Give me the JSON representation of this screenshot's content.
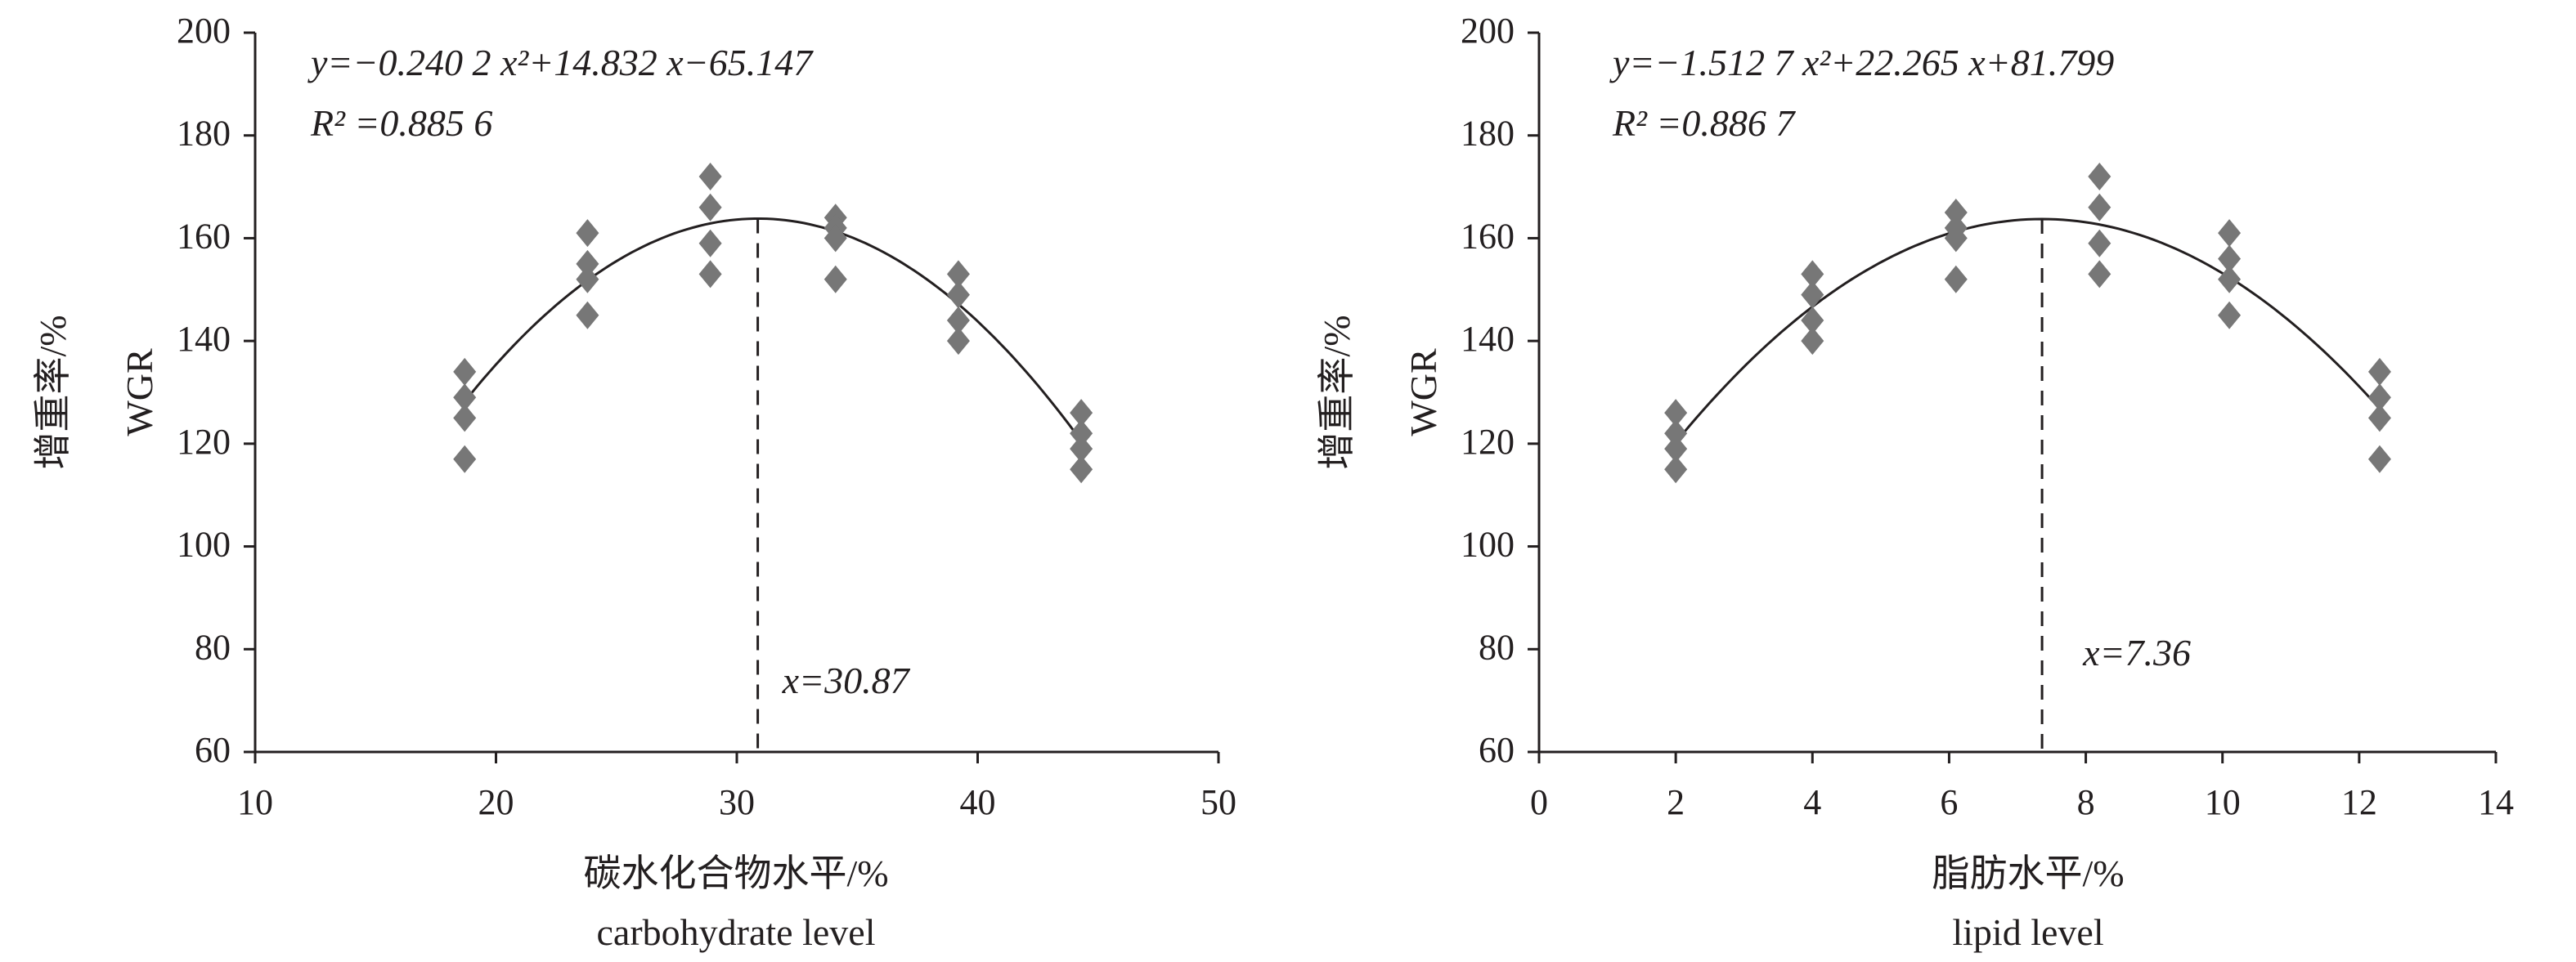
{
  "chart_data": [
    {
      "type": "scatter",
      "title": "",
      "xlabel": "碳水化合物水平/%",
      "xlabel_en": "carbohydrate level",
      "ylabel": "增重率/%",
      "ylabel_en": "WGR",
      "xlim": [
        10,
        50
      ],
      "ylim": [
        60,
        200
      ],
      "xticks": [
        10,
        20,
        30,
        40,
        50
      ],
      "yticks": [
        60,
        80,
        100,
        120,
        140,
        160,
        180,
        200
      ],
      "grid": false,
      "marker_color": "#777777",
      "points": [
        {
          "x": 18.7,
          "y": [
            134,
            129,
            125,
            117
          ]
        },
        {
          "x": 23.8,
          "y": [
            161,
            155,
            152,
            145
          ]
        },
        {
          "x": 28.9,
          "y": [
            172,
            166,
            159,
            153
          ]
        },
        {
          "x": 34.1,
          "y": [
            164,
            162,
            160,
            152
          ]
        },
        {
          "x": 39.2,
          "y": [
            153,
            149,
            144,
            140
          ]
        },
        {
          "x": 44.3,
          "y": [
            126,
            122,
            119,
            115
          ]
        }
      ],
      "fit": {
        "a": -0.2402,
        "b": 14.832,
        "c": -65.147,
        "xrange": [
          18.7,
          44.3
        ]
      },
      "equation": "y=−0.240 2 x²+14.832 x−65.147",
      "r2": "R² =0.885 6",
      "optimum_x": 30.87,
      "optimum_label": "x=30.87"
    },
    {
      "type": "scatter",
      "title": "",
      "xlabel": "脂肪水平/%",
      "xlabel_en": "lipid level",
      "ylabel": "增重率/%",
      "ylabel_en": "WGR",
      "xlim": [
        0,
        14
      ],
      "ylim": [
        60,
        200
      ],
      "xticks": [
        0,
        2,
        4,
        6,
        8,
        10,
        12,
        14
      ],
      "yticks": [
        60,
        80,
        100,
        120,
        140,
        160,
        180,
        200
      ],
      "grid": false,
      "marker_color": "#777777",
      "points": [
        {
          "x": 2.0,
          "y": [
            126,
            122,
            119,
            115
          ]
        },
        {
          "x": 4.0,
          "y": [
            153,
            149,
            144,
            140
          ]
        },
        {
          "x": 6.1,
          "y": [
            165,
            162,
            160,
            152
          ]
        },
        {
          "x": 8.2,
          "y": [
            172,
            166,
            159,
            153
          ]
        },
        {
          "x": 10.1,
          "y": [
            161,
            156,
            152,
            145
          ]
        },
        {
          "x": 12.3,
          "y": [
            134,
            129,
            125,
            117
          ]
        }
      ],
      "fit": {
        "a": -1.5127,
        "b": 22.265,
        "c": 81.799,
        "xrange": [
          2.0,
          12.3
        ]
      },
      "equation": "y=−1.512 7 x²+22.265 x+81.799",
      "r2": "R² =0.886 7",
      "optimum_x": 7.36,
      "optimum_label": "x=7.36"
    }
  ]
}
